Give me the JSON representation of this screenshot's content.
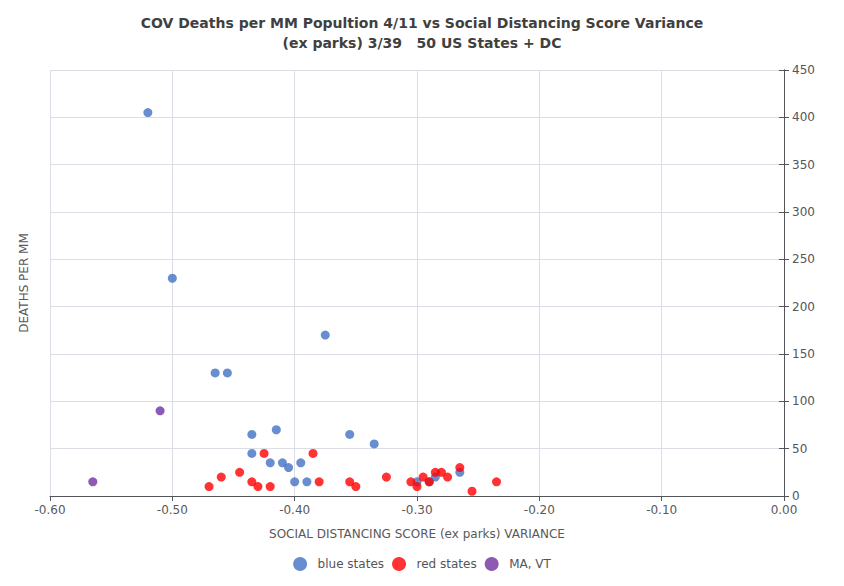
{
  "chart_data": {
    "type": "scatter",
    "title": "COV Deaths per MM Popultion 4/11 vs Social Distancing Score Variance\n(ex parks) 3/39   50 US States + DC",
    "xlabel": "SOCIAL DISTANCING SCORE (ex parks) VARIANCE",
    "ylabel": "DEATHS PER MM",
    "xlim": [
      -0.6,
      0.0
    ],
    "ylim": [
      0,
      450
    ],
    "xticks": [
      {
        "value": -0.6,
        "label": "-0.60"
      },
      {
        "value": -0.5,
        "label": "-0.50"
      },
      {
        "value": -0.4,
        "label": "-0.40"
      },
      {
        "value": -0.3,
        "label": "-0.30"
      },
      {
        "value": -0.2,
        "label": "-0.20"
      },
      {
        "value": -0.1,
        "label": "-0.10"
      },
      {
        "value": 0.0,
        "label": "0.00"
      }
    ],
    "yticks": [
      0,
      50,
      100,
      150,
      200,
      250,
      300,
      350,
      400,
      450
    ],
    "grid": true,
    "legend": "bottom",
    "series": [
      {
        "name": "blue states",
        "color": "#4472C4",
        "x": [
          -0.52,
          -0.5,
          -0.465,
          -0.455,
          -0.435,
          -0.435,
          -0.42,
          -0.415,
          -0.41,
          -0.405,
          -0.4,
          -0.395,
          -0.39,
          -0.375,
          -0.355,
          -0.335,
          -0.3,
          -0.29,
          -0.285,
          -0.265
        ],
        "values": [
          405,
          230,
          130,
          130,
          65,
          45,
          35,
          70,
          35,
          30,
          15,
          35,
          15,
          170,
          65,
          55,
          15,
          15,
          20,
          25
        ]
      },
      {
        "name": "red states",
        "color": "#FF0000",
        "x": [
          -0.47,
          -0.46,
          -0.445,
          -0.435,
          -0.43,
          -0.425,
          -0.42,
          -0.385,
          -0.38,
          -0.355,
          -0.35,
          -0.325,
          -0.305,
          -0.3,
          -0.295,
          -0.29,
          -0.285,
          -0.28,
          -0.275,
          -0.265,
          -0.255,
          -0.235
        ],
        "values": [
          10,
          20,
          25,
          15,
          10,
          45,
          10,
          45,
          15,
          15,
          10,
          20,
          15,
          10,
          20,
          15,
          25,
          25,
          20,
          30,
          5,
          15
        ]
      },
      {
        "name": "MA, VT",
        "color": "#7030A0",
        "x": [
          -0.565,
          -0.51
        ],
        "values": [
          15,
          90
        ]
      }
    ]
  }
}
